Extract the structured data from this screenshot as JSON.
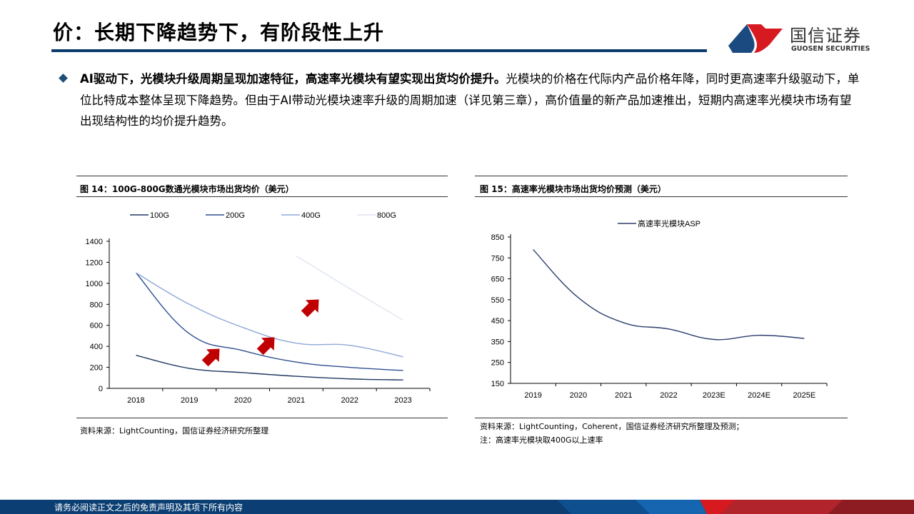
{
  "header": {
    "title": "价：长期下降趋势下，有阶段性上升",
    "logo": {
      "cn": "国信证券",
      "en": "GUOSEN SECURITIES"
    }
  },
  "bullet": {
    "bold": "AI驱动下，光模块升级周期呈现加速特征，高速率光模块有望实现出货均价提升。",
    "text": "光模块的价格在代际内产品价格年降，同时更高速率升级驱动下，单位比特成本整体呈现下降趋势。但由于AI带动光模块速率升级的周期加速（详见第三章），高价值量的新产品加速推出，短期内高速率光模块市场有望出现结构性的均价提升趋势。"
  },
  "fig14": {
    "caption": "图 14：100G-800G数通光模块市场出货均价（美元）",
    "source": "资料来源：LightCounting，国信证券经济研究所整理"
  },
  "fig15": {
    "caption": "图 15：高速率光模块市场出货均价预测（美元）",
    "source": "资料来源：LightCounting，Coherent，国信证券经济研究所整理及预测；",
    "note": "注：高速率光模块取400G以上速率"
  },
  "footer": {
    "disclaimer": "请务必阅读正文之后的免责声明及其项下所有内容"
  },
  "chart_data": [
    {
      "type": "line",
      "categories": [
        "2018",
        "2019",
        "2020",
        "2021",
        "2022",
        "2023"
      ],
      "ylim": [
        0,
        1400
      ],
      "yticks": [
        0,
        200,
        400,
        600,
        800,
        1000,
        1200,
        1400
      ],
      "legend": "top",
      "series": [
        {
          "name": "100G",
          "color": "#1f3864",
          "values": [
            315,
            190,
            150,
            115,
            90,
            80
          ]
        },
        {
          "name": "200G",
          "color": "#2f4f8f",
          "values": [
            1100,
            520,
            360,
            250,
            200,
            170
          ]
        },
        {
          "name": "400G",
          "color": "#8fa8d8",
          "values": [
            1100,
            800,
            580,
            430,
            410,
            300
          ]
        },
        {
          "name": "800G",
          "color": "#dde4f2",
          "values": [
            null,
            null,
            null,
            1260,
            950,
            650
          ]
        }
      ],
      "annotations": "red-up-arrows"
    },
    {
      "type": "line",
      "categories": [
        "2019",
        "2020",
        "2021",
        "2022",
        "2023E",
        "2024E",
        "2025E"
      ],
      "ylim": [
        150,
        850
      ],
      "yticks": [
        150,
        250,
        350,
        450,
        550,
        650,
        750,
        850
      ],
      "legend": "top",
      "series": [
        {
          "name": "高速率光模块ASP",
          "color": "#2f3f6f",
          "values": [
            790,
            560,
            440,
            410,
            360,
            380,
            365
          ]
        }
      ]
    }
  ]
}
